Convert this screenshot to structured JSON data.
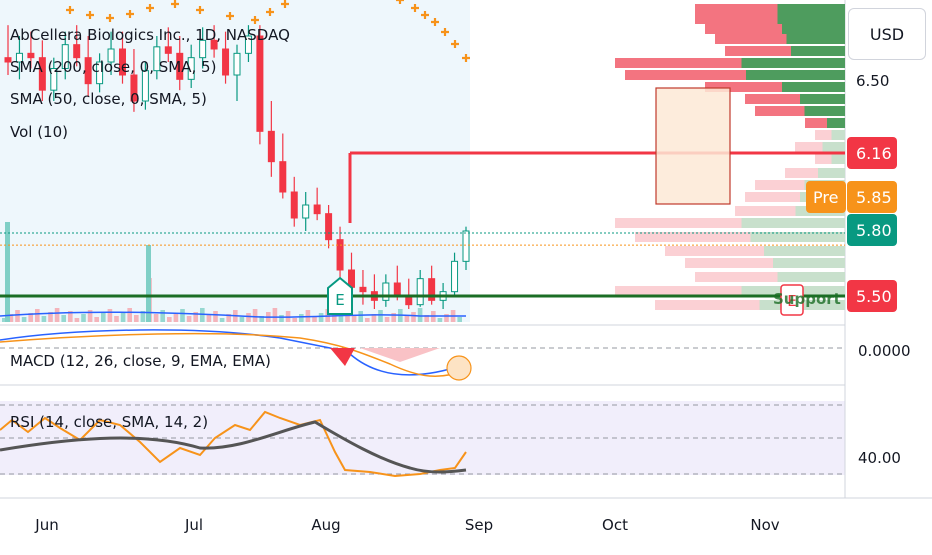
{
  "header": {
    "title": "AbCellera Biologics Inc., 1D, NASDAQ",
    "indicators": [
      "SMA (200, close, 0, SMA, 5)",
      "SMA (50, close, 0, SMA, 5)",
      "Vol (10)"
    ]
  },
  "currency_label": "USD",
  "price_axis": {
    "ticks": [
      {
        "label": "6.50",
        "value": 6.5
      }
    ],
    "badges": [
      {
        "name": "resistance-badge",
        "label": "6.16",
        "value": 6.16,
        "color": "#f23645"
      },
      {
        "name": "premarket-badge",
        "prefix": "Pre",
        "label": "5.85",
        "value": 5.85,
        "color": "#f7931a"
      },
      {
        "name": "last-price-badge",
        "label": "5.80",
        "value": 5.8,
        "color": "#089981"
      },
      {
        "name": "support-badge",
        "label": "5.50",
        "value": 5.5,
        "color": "#f23645"
      }
    ]
  },
  "support_label": "Support",
  "earnings_marker": "E",
  "macd": {
    "label": "MACD (12, 26, close, 9, EMA, EMA)",
    "axis_label": "0.0000"
  },
  "rsi": {
    "label": "RSI (14, close, SMA, 14, 2)",
    "axis_label": "40.00"
  },
  "time_axis": [
    "Jun",
    "Jul",
    "Aug",
    "Sep",
    "Oct",
    "Nov"
  ],
  "colors": {
    "up": "#089981",
    "down": "#f23645",
    "support": "#1b6e25",
    "pre": "#f7931a"
  },
  "chart_data": {
    "type": "candlestick",
    "symbol": "AbCellera Biologics Inc.",
    "interval": "1D",
    "exchange": "NASDAQ",
    "price_range": [
      5.43,
      6.7
    ],
    "ohlc": [
      {
        "o": 6.6,
        "h": 6.75,
        "l": 6.52,
        "c": 6.58
      },
      {
        "o": 6.58,
        "h": 6.7,
        "l": 6.5,
        "c": 6.62
      },
      {
        "o": 6.62,
        "h": 6.72,
        "l": 6.55,
        "c": 6.6
      },
      {
        "o": 6.6,
        "h": 6.68,
        "l": 6.4,
        "c": 6.45
      },
      {
        "o": 6.45,
        "h": 6.6,
        "l": 6.4,
        "c": 6.55
      },
      {
        "o": 6.55,
        "h": 6.72,
        "l": 6.5,
        "c": 6.66
      },
      {
        "o": 6.66,
        "h": 6.75,
        "l": 6.56,
        "c": 6.6
      },
      {
        "o": 6.6,
        "h": 6.7,
        "l": 6.42,
        "c": 6.48
      },
      {
        "o": 6.48,
        "h": 6.62,
        "l": 6.44,
        "c": 6.58
      },
      {
        "o": 6.58,
        "h": 6.72,
        "l": 6.52,
        "c": 6.64
      },
      {
        "o": 6.64,
        "h": 6.72,
        "l": 6.48,
        "c": 6.52
      },
      {
        "o": 6.52,
        "h": 6.64,
        "l": 6.35,
        "c": 6.4
      },
      {
        "o": 6.4,
        "h": 6.58,
        "l": 6.36,
        "c": 6.54
      },
      {
        "o": 6.54,
        "h": 6.7,
        "l": 6.5,
        "c": 6.65
      },
      {
        "o": 6.65,
        "h": 6.74,
        "l": 6.58,
        "c": 6.62
      },
      {
        "o": 6.62,
        "h": 6.7,
        "l": 6.45,
        "c": 6.5
      },
      {
        "o": 6.5,
        "h": 6.66,
        "l": 6.46,
        "c": 6.6
      },
      {
        "o": 6.6,
        "h": 6.74,
        "l": 6.55,
        "c": 6.68
      },
      {
        "o": 6.68,
        "h": 6.75,
        "l": 6.6,
        "c": 6.64
      },
      {
        "o": 6.64,
        "h": 6.72,
        "l": 6.48,
        "c": 6.52
      },
      {
        "o": 6.52,
        "h": 6.66,
        "l": 6.4,
        "c": 6.62
      },
      {
        "o": 6.62,
        "h": 6.75,
        "l": 6.58,
        "c": 6.7
      },
      {
        "o": 6.7,
        "h": 6.75,
        "l": 6.2,
        "c": 6.26
      },
      {
        "o": 6.26,
        "h": 6.4,
        "l": 6.05,
        "c": 6.12
      },
      {
        "o": 6.12,
        "h": 6.25,
        "l": 5.95,
        "c": 5.98
      },
      {
        "o": 5.98,
        "h": 6.05,
        "l": 5.82,
        "c": 5.86
      },
      {
        "o": 5.86,
        "h": 5.98,
        "l": 5.8,
        "c": 5.92
      },
      {
        "o": 5.92,
        "h": 6.0,
        "l": 5.85,
        "c": 5.88
      },
      {
        "o": 5.88,
        "h": 5.92,
        "l": 5.72,
        "c": 5.76
      },
      {
        "o": 5.76,
        "h": 5.82,
        "l": 5.58,
        "c": 5.62
      },
      {
        "o": 5.62,
        "h": 5.7,
        "l": 5.5,
        "c": 5.54
      },
      {
        "o": 5.54,
        "h": 5.62,
        "l": 5.46,
        "c": 5.52
      },
      {
        "o": 5.52,
        "h": 5.6,
        "l": 5.44,
        "c": 5.48
      },
      {
        "o": 5.48,
        "h": 5.6,
        "l": 5.45,
        "c": 5.56
      },
      {
        "o": 5.56,
        "h": 5.64,
        "l": 5.48,
        "c": 5.5
      },
      {
        "o": 5.5,
        "h": 5.58,
        "l": 5.44,
        "c": 5.46
      },
      {
        "o": 5.46,
        "h": 5.62,
        "l": 5.45,
        "c": 5.58
      },
      {
        "o": 5.58,
        "h": 5.64,
        "l": 5.46,
        "c": 5.48
      },
      {
        "o": 5.48,
        "h": 5.56,
        "l": 5.44,
        "c": 5.52
      },
      {
        "o": 5.52,
        "h": 5.7,
        "l": 5.5,
        "c": 5.66
      },
      {
        "o": 5.66,
        "h": 5.82,
        "l": 5.62,
        "c": 5.8
      }
    ],
    "resistance": 6.16,
    "support": 5.5,
    "premarket": 5.85,
    "last": 5.8,
    "rsi_axis": 40.0,
    "macd_axis": 0.0
  }
}
